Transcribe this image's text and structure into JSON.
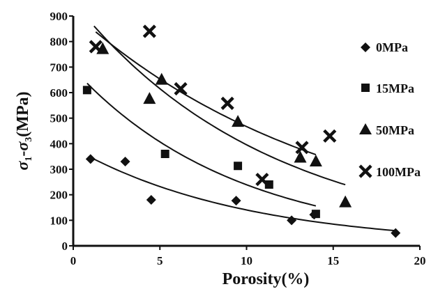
{
  "chart_data": {
    "type": "scatter",
    "xlabel": "Porosity(%)",
    "ylabel": "σ1-σ3(MPa)",
    "ylabel_parts": {
      "s1": "σ",
      "sub1": "1",
      "dash": "-",
      "s3": "σ",
      "sub3": "3",
      "rest": "(MPa)"
    },
    "xlim": [
      0,
      20
    ],
    "ylim": [
      0,
      900
    ],
    "xticks": [
      "0",
      "5",
      "10",
      "15",
      "20"
    ],
    "yticks": [
      "0",
      "100",
      "200",
      "300",
      "400",
      "500",
      "600",
      "700",
      "800",
      "900"
    ],
    "legend_position": "right",
    "grid": false,
    "series": [
      {
        "name": "0MPa",
        "marker": "diamond",
        "color": "#111111",
        "points": [
          [
            1.0,
            340
          ],
          [
            3.0,
            330
          ],
          [
            4.5,
            180
          ],
          [
            9.4,
            177
          ],
          [
            12.6,
            100
          ],
          [
            13.9,
            122
          ],
          [
            18.6,
            50
          ]
        ],
        "trend_x_range": [
          1.0,
          18.6
        ]
      },
      {
        "name": "15MPa",
        "marker": "square",
        "color": "#111111",
        "points": [
          [
            0.8,
            610
          ],
          [
            5.3,
            360
          ],
          [
            9.5,
            313
          ],
          [
            11.3,
            240
          ],
          [
            14.0,
            125
          ]
        ],
        "trend_x_range": [
          0.8,
          14.0
        ]
      },
      {
        "name": "50MPa",
        "marker": "triangle",
        "color": "#111111",
        "points": [
          [
            1.7,
            770
          ],
          [
            4.4,
            575
          ],
          [
            5.1,
            650
          ],
          [
            9.5,
            485
          ],
          [
            13.1,
            345
          ],
          [
            14.0,
            330
          ],
          [
            15.7,
            170
          ]
        ],
        "trend_x_range": [
          1.2,
          15.7
        ]
      },
      {
        "name": "100MPa",
        "marker": "x",
        "color": "#111111",
        "points": [
          [
            1.3,
            780
          ],
          [
            4.4,
            840
          ],
          [
            6.2,
            615
          ],
          [
            8.9,
            558
          ],
          [
            10.9,
            260
          ],
          [
            13.2,
            385
          ],
          [
            14.8,
            430
          ]
        ],
        "trend_x_range": [
          1.3,
          14.0
        ]
      }
    ]
  }
}
